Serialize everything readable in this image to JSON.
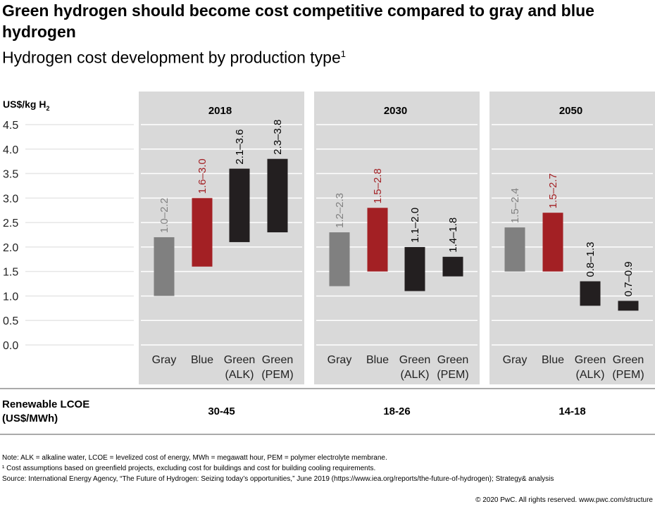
{
  "title": "Green hydrogen should become cost competitive compared to gray and blue hydrogen",
  "subtitle": "Hydrogen cost development by production type",
  "subtitle_footnote_mark": "1",
  "colors": {
    "gray": "#808080",
    "blue": "#a32024",
    "green": "#231f20",
    "panel": "#d9d9d9",
    "gray_label": "#808080",
    "blue_label": "#a32024",
    "green_label": "#000000"
  },
  "chart_data": {
    "type": "floating-bar",
    "ylabel": "US$/kg H",
    "ylabel_sub": "2",
    "ylim": [
      0,
      4.5
    ],
    "yticks": [
      "0.0",
      "0.5",
      "1.0",
      "1.5",
      "2.0",
      "2.5",
      "3.0",
      "3.5",
      "4.0",
      "4.5"
    ],
    "categories": [
      {
        "label": "Gray",
        "label2": ""
      },
      {
        "label": "Blue",
        "label2": ""
      },
      {
        "label": "Green",
        "label2": "(ALK)"
      },
      {
        "label": "Green",
        "label2": "(PEM)"
      }
    ],
    "series_colors": [
      "gray",
      "blue",
      "green",
      "green"
    ],
    "panels": [
      {
        "year": "2018",
        "ranges": [
          [
            1.0,
            2.2
          ],
          [
            1.6,
            3.0
          ],
          [
            2.1,
            3.6
          ],
          [
            2.3,
            3.8
          ]
        ],
        "labels": [
          "1.0–2.2",
          "1.6–3.0",
          "2.1–3.6",
          "2.3–3.8"
        ]
      },
      {
        "year": "2030",
        "ranges": [
          [
            1.2,
            2.3
          ],
          [
            1.5,
            2.8
          ],
          [
            1.1,
            2.0
          ],
          [
            1.4,
            1.8
          ]
        ],
        "labels": [
          "1.2–2.3",
          "1.5–2.8",
          "1.1–2.0",
          "1.4–1.8"
        ]
      },
      {
        "year": "2050",
        "ranges": [
          [
            1.5,
            2.4
          ],
          [
            1.5,
            2.7
          ],
          [
            0.8,
            1.3
          ],
          [
            0.7,
            0.9
          ]
        ],
        "labels": [
          "1.5–2.4",
          "1.5–2.7",
          "0.8–1.3",
          "0.7–0.9"
        ]
      }
    ]
  },
  "lcoe": {
    "label_line1": "Renewable LCOE",
    "label_line2": "(US$/MWh)",
    "values": [
      "30-45",
      "18-26",
      "14-18"
    ]
  },
  "notes": [
    "Note: ALK = alkaline water, LCOE = levelized cost of energy, MWh = megawatt hour, PEM = polymer electrolyte membrane.",
    "¹ Cost assumptions based on greenfield projects, excluding cost for buildings and cost for building cooling requirements.",
    "Source: International Energy Agency, “The Future of Hydrogen: Seizing today’s opportunities,” June 2019 (https://www.iea.org/reports/the-future-of-hydrogen); Strategy& analysis"
  ],
  "copyright": "© 2020 PwC. All rights reserved. www.pwc.com/structure"
}
